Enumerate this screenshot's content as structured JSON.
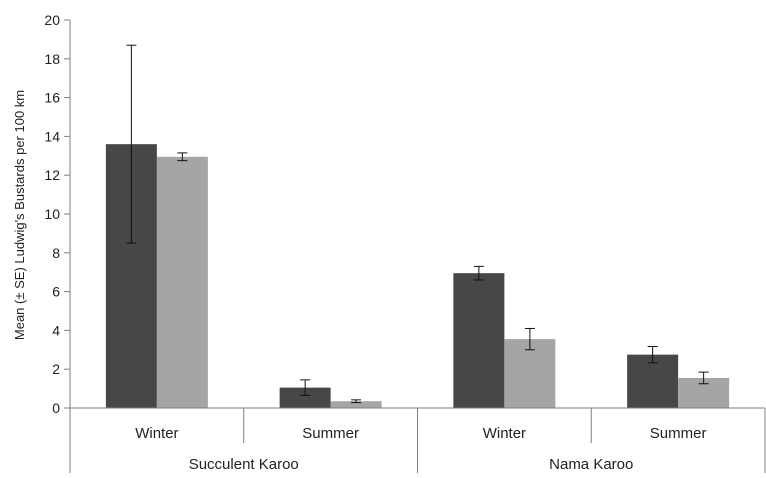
{
  "chart_data": {
    "type": "bar",
    "title": "",
    "ylabel": "Mean (± SE) Ludwig's Bustards per 100 km",
    "xlabel": "",
    "ylim": [
      0,
      20
    ],
    "yticks": [
      0,
      2,
      4,
      6,
      8,
      10,
      12,
      14,
      16,
      18,
      20
    ],
    "grid": false,
    "legend": "none",
    "groups": [
      {
        "label": "Succulent Karoo",
        "categories": [
          "Winter",
          "Summer"
        ]
      },
      {
        "label": "Nama Karoo",
        "categories": [
          "Winter",
          "Summer"
        ]
      }
    ],
    "categories": [
      "Winter",
      "Summer",
      "Winter",
      "Summer"
    ],
    "series": [
      {
        "color": "#474747",
        "values": [
          13.6,
          1.05,
          6.95,
          2.75
        ],
        "errors": [
          5.1,
          0.4,
          0.35,
          0.42
        ]
      },
      {
        "color": "#a5a5a5",
        "values": [
          12.95,
          0.35,
          3.55,
          1.55
        ],
        "errors": [
          0.2,
          0.07,
          0.55,
          0.3
        ]
      }
    ]
  }
}
